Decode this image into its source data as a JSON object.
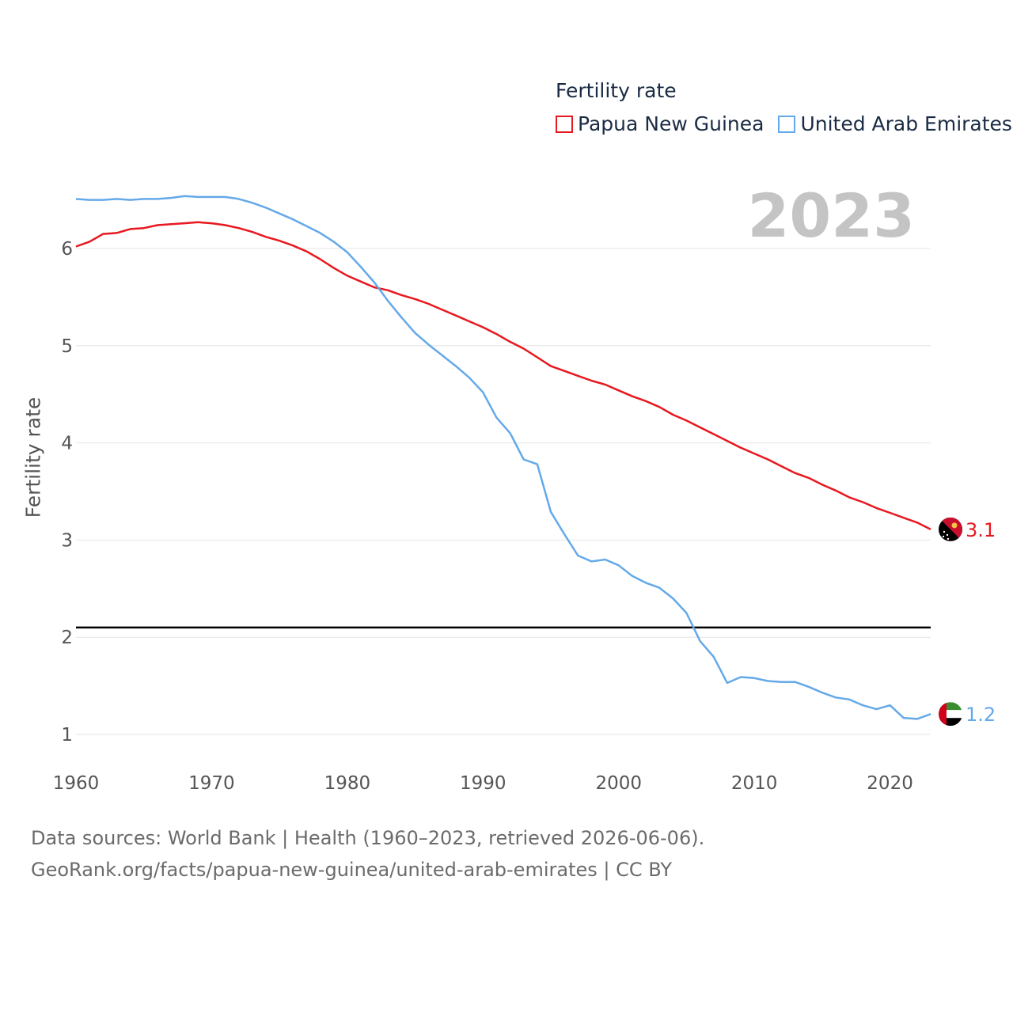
{
  "legend": {
    "title": "Fertility rate",
    "items": [
      {
        "label": "Papua New Guinea",
        "color": "#e8181f"
      },
      {
        "label": "United Arab Emirates",
        "color": "#64a9e9"
      }
    ]
  },
  "year_label": "2023",
  "footer": {
    "line1": "Data sources: World Bank | Health (1960–2023, retrieved 2026-06-06).",
    "line2": "GeoRank.org/facts/papua-new-guinea/united-arab-emirates | CC BY"
  },
  "chart_data": {
    "type": "line",
    "title": "",
    "xlabel": "",
    "ylabel": "Fertility rate",
    "xlim": [
      1960,
      2023
    ],
    "ylim": [
      0.9,
      6.55
    ],
    "x_ticks": [
      1960,
      1970,
      1980,
      1990,
      2000,
      2010,
      2020
    ],
    "y_ticks": [
      1,
      2,
      3,
      4,
      5,
      6
    ],
    "reference_line": {
      "y": 2.1,
      "color": "#000000"
    },
    "x": [
      1960,
      1961,
      1962,
      1963,
      1964,
      1965,
      1966,
      1967,
      1968,
      1969,
      1970,
      1971,
      1972,
      1973,
      1974,
      1975,
      1976,
      1977,
      1978,
      1979,
      1980,
      1981,
      1982,
      1983,
      1984,
      1985,
      1986,
      1987,
      1988,
      1989,
      1990,
      1991,
      1992,
      1993,
      1994,
      1995,
      1996,
      1997,
      1998,
      1999,
      2000,
      2001,
      2002,
      2003,
      2004,
      2005,
      2006,
      2007,
      2008,
      2009,
      2010,
      2011,
      2012,
      2013,
      2014,
      2015,
      2016,
      2017,
      2018,
      2019,
      2020,
      2021,
      2022,
      2023
    ],
    "series": [
      {
        "name": "Papua New Guinea",
        "color": "#e8181f",
        "end_label": "3.1",
        "values": [
          6.02,
          6.07,
          6.15,
          6.16,
          6.2,
          6.21,
          6.24,
          6.25,
          6.26,
          6.27,
          6.26,
          6.24,
          6.21,
          6.17,
          6.12,
          6.08,
          6.03,
          5.97,
          5.89,
          5.8,
          5.72,
          5.66,
          5.6,
          5.57,
          5.52,
          5.48,
          5.43,
          5.37,
          5.31,
          5.25,
          5.19,
          5.12,
          5.04,
          4.97,
          4.88,
          4.79,
          4.74,
          4.69,
          4.64,
          4.6,
          4.54,
          4.48,
          4.43,
          4.37,
          4.29,
          4.23,
          4.16,
          4.09,
          4.02,
          3.95,
          3.89,
          3.83,
          3.76,
          3.69,
          3.64,
          3.57,
          3.51,
          3.44,
          3.39,
          3.33,
          3.28,
          3.23,
          3.18,
          3.11
        ]
      },
      {
        "name": "United Arab Emirates",
        "color": "#64a9e9",
        "end_label": "1.2",
        "values": [
          6.51,
          6.5,
          6.5,
          6.51,
          6.5,
          6.51,
          6.51,
          6.52,
          6.54,
          6.53,
          6.53,
          6.53,
          6.51,
          6.47,
          6.42,
          6.36,
          6.3,
          6.23,
          6.16,
          6.07,
          5.96,
          5.81,
          5.65,
          5.46,
          5.29,
          5.13,
          5.01,
          4.9,
          4.79,
          4.67,
          4.52,
          4.26,
          4.1,
          3.83,
          3.78,
          3.29,
          3.06,
          2.84,
          2.78,
          2.8,
          2.74,
          2.63,
          2.56,
          2.51,
          2.4,
          2.25,
          1.96,
          1.8,
          1.53,
          1.59,
          1.58,
          1.55,
          1.54,
          1.54,
          1.49,
          1.43,
          1.38,
          1.36,
          1.3,
          1.26,
          1.3,
          1.17,
          1.16,
          1.21
        ]
      }
    ]
  }
}
